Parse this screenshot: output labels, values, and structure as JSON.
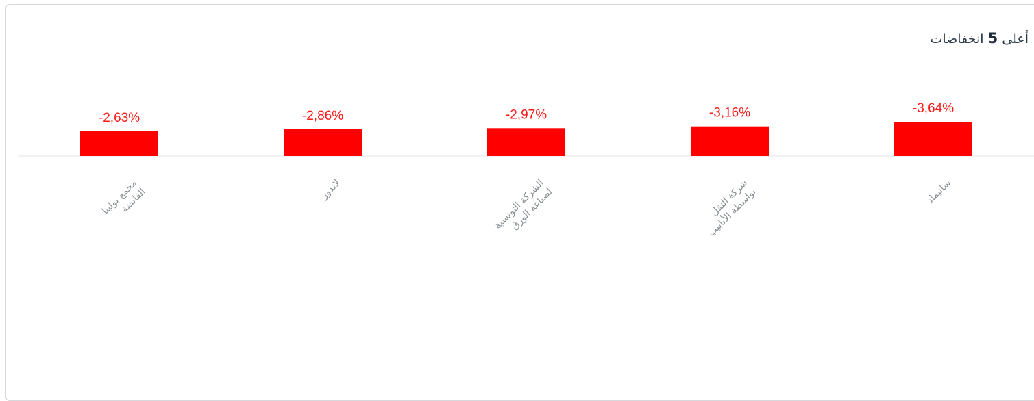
{
  "header": {
    "title_prefix": "أعلى",
    "title_number": "5",
    "title_suffix": "انخفاضات"
  },
  "colors": {
    "bar": "#ff0000",
    "value_label": "#ff1a1a",
    "axis": "#e2e4e7",
    "category_label": "#8a8f96"
  },
  "chart_data": {
    "type": "bar",
    "title": "أعلى 5 انخفاضات",
    "categories": [
      [
        "مجمع بولينا",
        "القابضة"
      ],
      [
        "لاندور"
      ],
      [
        "الشركة التونسية",
        "لصناعة الورق"
      ],
      [
        "شركة النقل",
        "بواسطة الأنابيب"
      ],
      [
        "سانيماد"
      ]
    ],
    "values": [
      -2.63,
      -2.86,
      -2.97,
      -3.16,
      -3.64
    ],
    "value_labels": [
      "-2,63%",
      "-2,86%",
      "-2,97%",
      "-3,16%",
      "-3,64%"
    ],
    "unit": "%",
    "grid": false,
    "legend": "none"
  }
}
